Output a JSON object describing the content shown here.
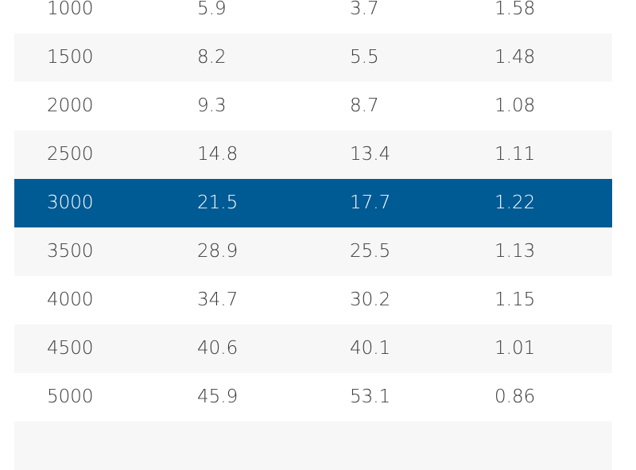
{
  "table": {
    "rows": [
      [
        "1000",
        "5.9",
        "3.7",
        "1.58"
      ],
      [
        "1500",
        "8.2",
        "5.5",
        "1.48"
      ],
      [
        "2000",
        "9.3",
        "8.7",
        "1.08"
      ],
      [
        "2500",
        "14.8",
        "13.4",
        "1.11"
      ],
      [
        "3000",
        "21.5",
        "17.7",
        "1.22"
      ],
      [
        "3500",
        "28.9",
        "25.5",
        "1.13"
      ],
      [
        "4000",
        "34.7",
        "30.2",
        "1.15"
      ],
      [
        "4500",
        "40.6",
        "40.1",
        "1.01"
      ],
      [
        "5000",
        "45.9",
        "53.1",
        "0.86"
      ]
    ]
  }
}
